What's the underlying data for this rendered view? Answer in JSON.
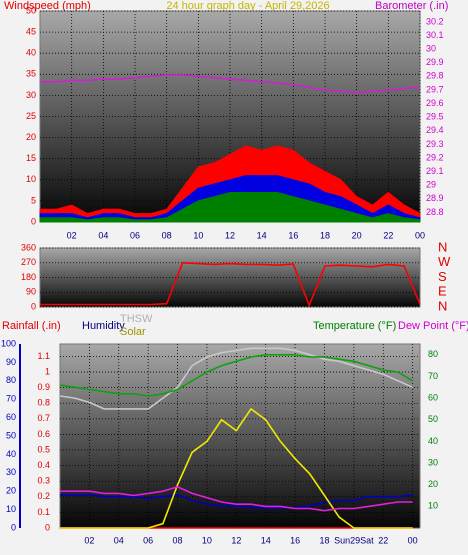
{
  "chart_data": [
    {
      "type": "line",
      "title": "24 hour graph day - April 29,2026",
      "ylabel": "Windspeed (mph)",
      "x": [
        0,
        1,
        2,
        3,
        4,
        5,
        6,
        7,
        8,
        9,
        10,
        11,
        12,
        13,
        14,
        15,
        16,
        17,
        18,
        19,
        20,
        21,
        22,
        23,
        24
      ],
      "xlim": [
        0,
        24
      ],
      "xticks": [
        {
          "value": 2,
          "label": "02"
        },
        {
          "value": 4,
          "label": "04"
        },
        {
          "value": 6,
          "label": "06"
        },
        {
          "value": 8,
          "label": "08"
        },
        10,
        12,
        14,
        16,
        18,
        20,
        22,
        {
          "value": 24,
          "label": "00"
        }
      ],
      "ylim": [
        0,
        50
      ],
      "yticks": [
        0,
        5,
        10,
        15,
        20,
        25,
        30,
        35,
        40,
        45,
        50
      ],
      "y2lim": [
        28.73,
        30.28
      ],
      "y2ticks": [
        28.8,
        28.9,
        29,
        29.1,
        29.2,
        29.3,
        29.4,
        29.5,
        29.6,
        29.7,
        29.8,
        29.9,
        30,
        30.1,
        30.2
      ],
      "grid": true,
      "series": [
        {
          "color": "#ff0000",
          "style": "area",
          "values": [
            3,
            3,
            4,
            2,
            3,
            3,
            2,
            2,
            3,
            8,
            13,
            14,
            16,
            18,
            17,
            18,
            17,
            14,
            12,
            10,
            6,
            4,
            7,
            4,
            2
          ]
        },
        {
          "color": "#0000e0",
          "style": "area",
          "values": [
            2,
            2,
            2,
            1,
            2,
            2,
            1,
            1,
            2,
            5,
            8,
            9,
            10,
            11,
            11,
            11,
            10,
            9,
            7,
            6,
            4,
            2,
            4,
            2,
            1
          ]
        },
        {
          "color": "#008000",
          "style": "area",
          "values": [
            1,
            1,
            1,
            0.5,
            1,
            1,
            0.5,
            0.5,
            1,
            3,
            5,
            6,
            7,
            7,
            7,
            7,
            6,
            5,
            4,
            3,
            2,
            1,
            2,
            1,
            0.5
          ]
        },
        {
          "name": "Barometer (.in)",
          "color": "#d020d0",
          "style": "line",
          "axis": "y2",
          "values": [
            29.76,
            29.76,
            29.77,
            29.77,
            29.78,
            29.78,
            29.79,
            29.8,
            29.81,
            29.81,
            29.8,
            29.79,
            29.78,
            29.77,
            29.76,
            29.75,
            29.74,
            29.72,
            29.7,
            29.69,
            29.68,
            29.69,
            29.7,
            29.71,
            29.72
          ]
        }
      ]
    },
    {
      "type": "line",
      "x": [
        0,
        1,
        2,
        3,
        4,
        5,
        6,
        7,
        8,
        9,
        10,
        11,
        12,
        13,
        14,
        15,
        16,
        17,
        18,
        19,
        20,
        21,
        22,
        23,
        24
      ],
      "xlim": [
        0,
        24
      ],
      "ylim": [
        0,
        360
      ],
      "yticks": [
        0,
        90,
        180,
        270,
        360
      ],
      "y2lim": [
        0,
        360
      ],
      "y2ticks": [
        {
          "value": 360,
          "label": "N"
        },
        {
          "value": 270,
          "label": "W"
        },
        {
          "value": 180,
          "label": "S"
        },
        {
          "value": 90,
          "label": "E"
        },
        {
          "value": 0,
          "label": "N"
        }
      ],
      "grid": true,
      "series": [
        {
          "color": "#ff0000",
          "style": "line",
          "values": [
            15,
            15,
            15,
            15,
            15,
            15,
            15,
            15,
            20,
            270,
            265,
            260,
            265,
            260,
            260,
            255,
            262,
            10,
            250,
            255,
            250,
            245,
            260,
            250,
            15
          ]
        }
      ]
    },
    {
      "type": "line",
      "x": [
        0,
        1,
        2,
        3,
        4,
        5,
        6,
        7,
        8,
        9,
        10,
        11,
        12,
        13,
        14,
        15,
        16,
        17,
        18,
        19,
        20,
        21,
        22,
        23,
        24
      ],
      "xlim": [
        0,
        24.5
      ],
      "xticks": [
        {
          "value": 2,
          "label": "02"
        },
        {
          "value": 4,
          "label": "04"
        },
        {
          "value": 6,
          "label": "06"
        },
        {
          "value": 8,
          "label": "08"
        },
        10,
        12,
        14,
        16,
        18,
        {
          "value": 20,
          "label": "Sun29Sat"
        },
        22,
        {
          "value": 24,
          "label": "00"
        }
      ],
      "ylim": [
        0,
        1.18
      ],
      "yticks": [
        0,
        0.1,
        0.2,
        0.3,
        0.4,
        0.5,
        0.6,
        0.7,
        0.8,
        0.9,
        1,
        1.1
      ],
      "y3lim": [
        0,
        100
      ],
      "y3ticks": [
        0,
        10,
        20,
        30,
        40,
        50,
        60,
        70,
        80,
        90,
        100
      ],
      "y2lim": [
        0,
        85
      ],
      "y2ticks": [
        10,
        20,
        30,
        40,
        50,
        60,
        70,
        80
      ],
      "grid": true,
      "series": [
        {
          "name": "Rainfall (.in)",
          "color": "#ff0000",
          "style": "line",
          "values": [
            0,
            0,
            0,
            0,
            0,
            0,
            0,
            0,
            0,
            0,
            0,
            0,
            0,
            0,
            0,
            0,
            0,
            0,
            0,
            0,
            0,
            0,
            0,
            0,
            0
          ]
        },
        {
          "name": "Humidity",
          "color": "#0000c0",
          "style": "line",
          "axis": "y3",
          "values": [
            18,
            18,
            18,
            17,
            17,
            17,
            16,
            17,
            18,
            15,
            13,
            12,
            12,
            11,
            11,
            11,
            11,
            12,
            14,
            15,
            15,
            17,
            17,
            17,
            18
          ]
        },
        {
          "name": "THSW",
          "color": "#c8c8c8",
          "style": "line",
          "axis": "y2",
          "values": [
            61,
            60,
            58,
            55,
            55,
            55,
            55,
            60,
            65,
            75,
            79,
            81,
            82,
            83,
            83,
            83,
            82,
            80,
            78,
            77,
            75,
            73,
            71,
            68,
            65
          ]
        },
        {
          "name": "Solar",
          "color": "#f0e800",
          "style": "line",
          "axis": "y2",
          "values": [
            0,
            0,
            0,
            0,
            0,
            0,
            0,
            2,
            20,
            35,
            40,
            50,
            45,
            55,
            50,
            40,
            32,
            25,
            15,
            5,
            0,
            0,
            0,
            0,
            0
          ]
        },
        {
          "name": "Temperature (°F)",
          "color": "#10a010",
          "style": "line",
          "axis": "y2",
          "values": [
            66,
            65,
            64,
            63,
            62,
            62,
            61,
            62,
            64,
            68,
            72,
            75,
            77,
            79,
            80,
            80,
            80,
            79,
            79,
            78,
            77,
            75,
            73,
            72,
            68
          ]
        },
        {
          "name": "Dew Point (°F)",
          "color": "#e020e0",
          "style": "line",
          "axis": "y2",
          "values": [
            17,
            17,
            17,
            16,
            16,
            15,
            16,
            17,
            19,
            16,
            14,
            12,
            11,
            11,
            10,
            10,
            9,
            9,
            8,
            9,
            9,
            10,
            11,
            12,
            12
          ]
        }
      ]
    }
  ]
}
